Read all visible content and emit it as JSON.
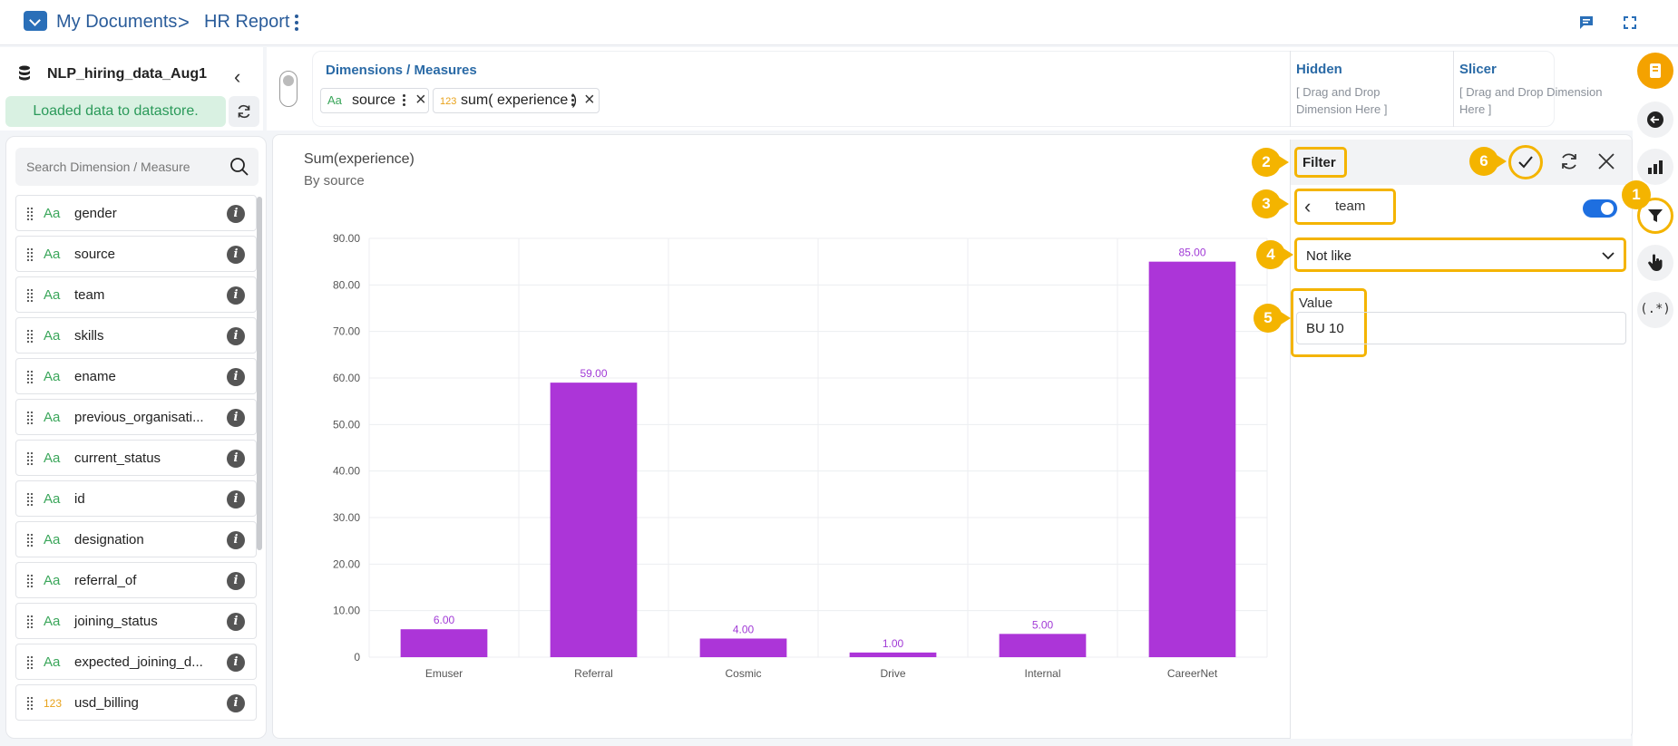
{
  "breadcrumb": {
    "root": "My Documents",
    "separator": ">",
    "current": "HR Report"
  },
  "datasource": {
    "name": "NLP_hiring_data_Aug1",
    "status": "Loaded data to datastore."
  },
  "dims_measures": {
    "title": "Dimensions / Measures",
    "chips": [
      {
        "type": "Aa",
        "label": "source"
      },
      {
        "type": "123",
        "label": "sum( experience )"
      }
    ],
    "hidden": {
      "title": "Hidden",
      "hint": "[ Drag and Drop Dimension Here ]"
    },
    "slicer": {
      "title": "Slicer",
      "hint": "[ Drag and Drop Dimension Here ]"
    }
  },
  "search": {
    "placeholder": "Search Dimension / Measure"
  },
  "fields": [
    {
      "type": "Aa",
      "name": "gender"
    },
    {
      "type": "Aa",
      "name": "source"
    },
    {
      "type": "Aa",
      "name": "team"
    },
    {
      "type": "Aa",
      "name": "skills"
    },
    {
      "type": "Aa",
      "name": "ename"
    },
    {
      "type": "Aa",
      "name": "previous_organisati..."
    },
    {
      "type": "Aa",
      "name": "current_status"
    },
    {
      "type": "Aa",
      "name": "id"
    },
    {
      "type": "Aa",
      "name": "designation"
    },
    {
      "type": "Aa",
      "name": "referral_of"
    },
    {
      "type": "Aa",
      "name": "joining_status"
    },
    {
      "type": "Aa",
      "name": "expected_joining_d..."
    },
    {
      "type": "123",
      "name": "usd_billing"
    }
  ],
  "chart_data": {
    "type": "bar",
    "title": "Sum(experience)",
    "subtitle": "By source",
    "categories": [
      "Emuser",
      "Referral",
      "Cosmic",
      "Drive",
      "Internal",
      "CareerNet"
    ],
    "values": [
      6.0,
      59.0,
      4.0,
      1.0,
      5.0,
      85.0
    ],
    "value_labels": [
      "6.00",
      "59.00",
      "4.00",
      "1.00",
      "5.00",
      "85.00"
    ],
    "yticks": [
      "0",
      "10.00",
      "20.00",
      "30.00",
      "40.00",
      "50.00",
      "60.00",
      "70.00",
      "80.00",
      "90.00"
    ],
    "ylim": [
      0,
      90
    ],
    "bar_color": "#ac35d8",
    "label_color": "#a13ad6",
    "grid": true
  },
  "filter": {
    "title": "Filter",
    "column": "team",
    "enabled": true,
    "operator": "Not like",
    "value_label": "Value",
    "value": "BU 10"
  },
  "callouts": [
    "1",
    "2",
    "3",
    "4",
    "5",
    "6"
  ],
  "colors": {
    "accent": "#f4b400",
    "brand": "#2a6fb8",
    "toggle": "#1e6fe0"
  }
}
